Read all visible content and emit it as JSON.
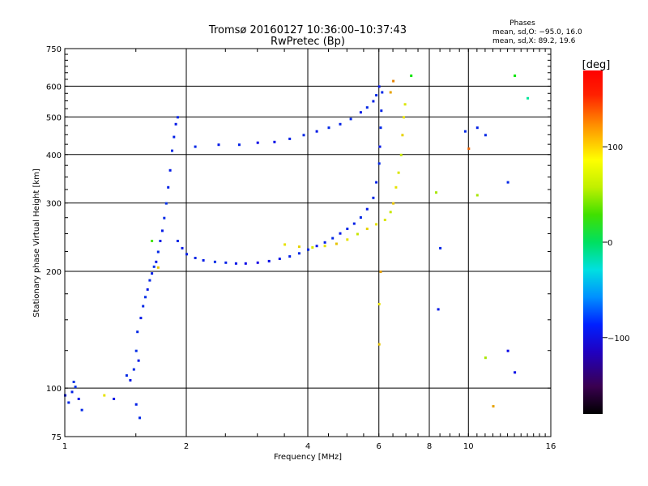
{
  "chart_data": {
    "type": "scatter",
    "title": "Tromsø 20160127 10:36:00–10:37:43",
    "subtitle": "RwPretec (Bp)",
    "stats": {
      "heading": "Phases",
      "line_o": "mean, sd,O: −95.0, 16.0",
      "line_x": "mean, sd,X:  89.2, 19.6"
    },
    "xlabel": "Frequency [MHz]",
    "ylabel": "Stationary phase Virtual Height [km]",
    "x_scale": "log",
    "y_scale": "log",
    "xlim": [
      1,
      16
    ],
    "ylim": [
      75,
      750
    ],
    "x_ticks": [
      1,
      2,
      4,
      6,
      8,
      10,
      16
    ],
    "x_tick_labels": [
      "1",
      "2",
      "4",
      "6",
      "8",
      "10",
      "16"
    ],
    "y_ticks": [
      75,
      100,
      200,
      300,
      400,
      500,
      600,
      750
    ],
    "y_tick_labels": [
      "75",
      "100",
      "200",
      "300",
      "400",
      "500",
      "600",
      "750"
    ],
    "grid": true,
    "colorbar": {
      "label": "[deg]",
      "range": [
        -180,
        180
      ],
      "ticks": [
        100,
        0,
        -100
      ],
      "tick_labels": [
        "100",
        "0",
        "−100"
      ]
    },
    "series": [
      {
        "points": [
          [
            1.0,
            96,
            -110
          ],
          [
            1.02,
            92,
            -100
          ],
          [
            1.04,
            98,
            -105
          ],
          [
            1.06,
            101,
            -95
          ],
          [
            1.08,
            94,
            -110
          ],
          [
            1.1,
            88,
            -100
          ],
          [
            1.05,
            104,
            -90
          ],
          [
            1.25,
            96,
            110
          ],
          [
            1.32,
            94,
            -110
          ],
          [
            1.42,
            108,
            -100
          ],
          [
            1.45,
            105,
            -110
          ],
          [
            1.48,
            112,
            -100
          ],
          [
            1.5,
            125,
            -95
          ],
          [
            1.52,
            118,
            -110
          ],
          [
            1.5,
            91,
            -105
          ],
          [
            1.53,
            84,
            -100
          ]
        ]
      },
      {
        "points": [
          [
            1.51,
            140,
            -100
          ],
          [
            1.54,
            152,
            -110
          ],
          [
            1.56,
            163,
            -100
          ],
          [
            1.58,
            172,
            -95
          ],
          [
            1.6,
            180,
            -110
          ],
          [
            1.62,
            190,
            -100
          ],
          [
            1.64,
            198,
            -105
          ],
          [
            1.66,
            206,
            -95
          ],
          [
            1.68,
            212,
            -110
          ],
          [
            1.7,
            225,
            -100
          ],
          [
            1.72,
            240,
            -105
          ],
          [
            1.74,
            255,
            -110
          ],
          [
            1.76,
            275,
            -100
          ],
          [
            1.78,
            300,
            -95
          ],
          [
            1.8,
            330,
            -105
          ],
          [
            1.82,
            365,
            -110
          ],
          [
            1.84,
            410,
            -100
          ],
          [
            1.86,
            445,
            -105
          ],
          [
            1.88,
            480,
            -110
          ],
          [
            1.9,
            500,
            -100
          ],
          [
            1.64,
            240,
            60
          ],
          [
            1.7,
            205,
            120
          ]
        ]
      },
      {
        "points": [
          [
            1.9,
            240,
            -100
          ],
          [
            1.95,
            230,
            -110
          ],
          [
            2.0,
            222,
            -105
          ],
          [
            2.1,
            217,
            -100
          ],
          [
            2.2,
            214,
            -110
          ],
          [
            2.35,
            212,
            -95
          ],
          [
            2.5,
            211,
            -105
          ],
          [
            2.65,
            210,
            -115
          ],
          [
            2.8,
            210,
            -130
          ],
          [
            3.0,
            211,
            -140
          ],
          [
            3.2,
            213,
            -120
          ],
          [
            3.4,
            216,
            -110
          ],
          [
            3.6,
            219,
            -105
          ],
          [
            3.8,
            223,
            -100
          ],
          [
            4.0,
            228,
            -100
          ],
          [
            4.2,
            233,
            -110
          ],
          [
            4.4,
            238,
            -105
          ],
          [
            4.6,
            244,
            -100
          ],
          [
            4.8,
            251,
            -110
          ],
          [
            5.0,
            258,
            -100
          ],
          [
            5.2,
            266,
            -105
          ],
          [
            5.4,
            276,
            -100
          ],
          [
            5.6,
            290,
            -110
          ],
          [
            5.8,
            310,
            -100
          ],
          [
            5.9,
            340,
            -105
          ],
          [
            6.0,
            380,
            -100
          ],
          [
            6.02,
            420,
            -110
          ],
          [
            6.05,
            470,
            -100
          ],
          [
            6.07,
            520,
            -105
          ],
          [
            6.1,
            580,
            -100
          ]
        ]
      },
      {
        "points": [
          [
            3.5,
            235,
            110
          ],
          [
            3.8,
            232,
            115
          ],
          [
            4.1,
            231,
            105
          ],
          [
            4.4,
            233,
            110
          ],
          [
            4.7,
            236,
            120
          ],
          [
            5.0,
            242,
            110
          ],
          [
            5.3,
            250,
            100
          ],
          [
            5.6,
            258,
            115
          ],
          [
            5.9,
            265,
            110
          ],
          [
            6.2,
            272,
            105
          ],
          [
            6.4,
            285,
            100
          ],
          [
            6.5,
            300,
            120
          ],
          [
            6.6,
            330,
            110
          ],
          [
            6.7,
            360,
            105
          ],
          [
            6.8,
            400,
            100
          ],
          [
            6.85,
            450,
            115
          ],
          [
            6.9,
            500,
            110
          ],
          [
            6.95,
            540,
            105
          ],
          [
            6.5,
            620,
            140
          ],
          [
            6.4,
            580,
            130
          ]
        ]
      },
      {
        "points": [
          [
            2.1,
            420,
            -100
          ],
          [
            2.4,
            425,
            -110
          ],
          [
            2.7,
            425,
            -105
          ],
          [
            3.0,
            430,
            -130
          ],
          [
            3.3,
            432,
            -120
          ],
          [
            3.6,
            440,
            -105
          ],
          [
            3.9,
            450,
            -100
          ],
          [
            4.2,
            460,
            -110
          ],
          [
            4.5,
            470,
            -100
          ],
          [
            4.8,
            480,
            -105
          ],
          [
            5.1,
            495,
            -100
          ],
          [
            5.4,
            515,
            -110
          ],
          [
            5.6,
            530,
            -100
          ],
          [
            5.8,
            550,
            -105
          ],
          [
            5.9,
            570,
            -100
          ],
          [
            6.0,
            600,
            -110
          ]
        ]
      },
      {
        "points": [
          [
            6.0,
            130,
            120
          ],
          [
            6.0,
            165,
            110
          ],
          [
            6.05,
            200,
            130
          ],
          [
            8.5,
            230,
            -100
          ],
          [
            8.4,
            160,
            -110
          ],
          [
            8.3,
            320,
            90
          ],
          [
            9.8,
            460,
            -100
          ],
          [
            10.0,
            415,
            150
          ],
          [
            10.5,
            470,
            -105
          ],
          [
            11.0,
            450,
            -100
          ],
          [
            11.0,
            120,
            90
          ],
          [
            12.5,
            340,
            -100
          ],
          [
            13.0,
            640,
            40
          ],
          [
            14.0,
            560,
            -10
          ],
          [
            12.5,
            125,
            -130
          ],
          [
            11.5,
            90,
            130
          ],
          [
            13.0,
            110,
            -120
          ],
          [
            7.2,
            640,
            40
          ],
          [
            10.5,
            315,
            90
          ]
        ]
      }
    ]
  }
}
